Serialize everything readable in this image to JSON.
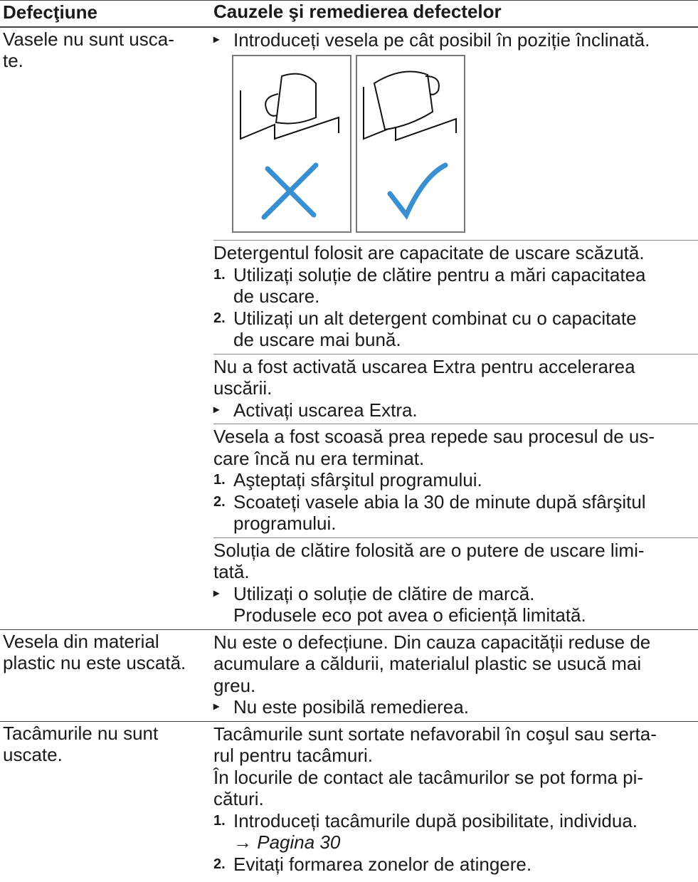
{
  "table": {
    "header": [
      "Defecţiune",
      "Cauzele şi remedierea defectelor"
    ],
    "rows": [
      {
        "fault": [
          "Vasele nu sunt usca-",
          "te."
        ],
        "causes": [
          {
            "actions": [
              [
                "Introduceți vesela pe cât posibil în poziție înclinată."
              ]
            ],
            "figure": true
          },
          {
            "cause": [
              "Detergentul folosit are capacitate de uscare scăzută."
            ],
            "steps": [
              {
                "number": "1.",
                "lines": [
                  "Utilizați soluție de clătire pentru a mări capacitatea",
                  "de uscare."
                ]
              },
              {
                "number": "2.",
                "lines": [
                  "Utilizați un alt detergent combinat cu o capacitate",
                  "de uscare mai bună."
                ]
              }
            ]
          },
          {
            "cause": [
              "Nu a fost activată uscarea Extra pentru accelerarea",
              "uscării."
            ],
            "actions": [
              [
                "Activați uscarea Extra."
              ]
            ]
          },
          {
            "cause": [
              "Vesela a fost scoasă prea repede sau procesul de us-",
              "care încă nu era terminat."
            ],
            "steps": [
              {
                "number": "1.",
                "lines": [
                  "Aşteptați sfârşitul programului."
                ]
              },
              {
                "number": "2.",
                "lines": [
                  "Scoateți vasele abia la 30 de minute după sfârşitul",
                  "programului."
                ]
              }
            ]
          },
          {
            "cause": [
              "Soluția de clătire folosită are o putere de uscare limi-",
              "tată."
            ],
            "actions": [
              [
                "Utilizați o soluție de clătire de marcă."
              ]
            ],
            "note": "Produsele eco pot avea o eficiență limitată."
          }
        ]
      },
      {
        "fault": [
          "Vesela din material",
          "plastic nu este uscată."
        ],
        "causes": [
          {
            "cause": [
              "Nu este o defecțiune. Din cauza capacității reduse de",
              "acumulare a căldurii, materialul plastic se usucă mai",
              "greu."
            ],
            "actions": [
              [
                "Nu este posibilă remedierea."
              ]
            ]
          }
        ]
      },
      {
        "fault": [
          "Tacâmurile nu sunt",
          "uscate."
        ],
        "causes": [
          {
            "cause": [
              "Tacâmurile sunt sortate nefavorabil în coşul sau serta-",
              "rul pentru tacâmuri.",
              "În locurile de contact ale tacâmurilor se pot forma pi-",
              "cături."
            ],
            "steps": [
              {
                "number": "1.",
                "lines": [
                  "Introduceți tacâmurile după posibilitate, individua."
                ],
                "reference": "→ Pagina 30"
              },
              {
                "number": "2.",
                "lines": [
                  "Evitați formarea zonelor de atingere."
                ]
              }
            ]
          }
        ]
      }
    ]
  }
}
